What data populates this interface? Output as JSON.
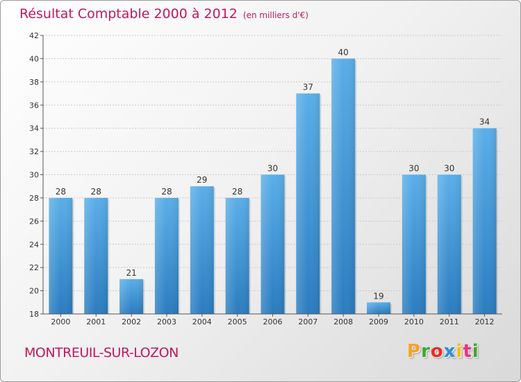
{
  "header": {
    "title": "Résultat Comptable 2000 à 2012",
    "unit": "(en milliers d'€)"
  },
  "footer": {
    "place": "MONTREUIL-SUR-LOZON",
    "logo": [
      "P",
      "r",
      "o",
      "x",
      "i",
      "t",
      "i"
    ],
    "logo_colors": [
      "#f7a128",
      "#3fa535",
      "#e52d2a",
      "#2b8fd6",
      "#f2c010",
      "#e8347f",
      "#3fa535"
    ]
  },
  "colors": {
    "title": "#c0185e",
    "bar_top": "#5aaee8",
    "bar_bottom": "#2a7cc0",
    "grid": "#c8c8c8"
  },
  "chart_data": {
    "type": "bar",
    "title": "Résultat Comptable 2000 à 2012",
    "subtitle": "(en milliers d'€)",
    "categories": [
      "2000",
      "2001",
      "2002",
      "2003",
      "2004",
      "2005",
      "2006",
      "2007",
      "2008",
      "2009",
      "2010",
      "2011",
      "2012"
    ],
    "values": [
      28,
      28,
      21,
      28,
      29,
      28,
      30,
      37,
      40,
      19,
      30,
      30,
      34
    ],
    "ylim": [
      18,
      42
    ],
    "yticks": [
      18,
      20,
      22,
      24,
      26,
      28,
      30,
      32,
      34,
      36,
      38,
      40,
      42
    ],
    "grid": true,
    "show_value_labels": true
  }
}
